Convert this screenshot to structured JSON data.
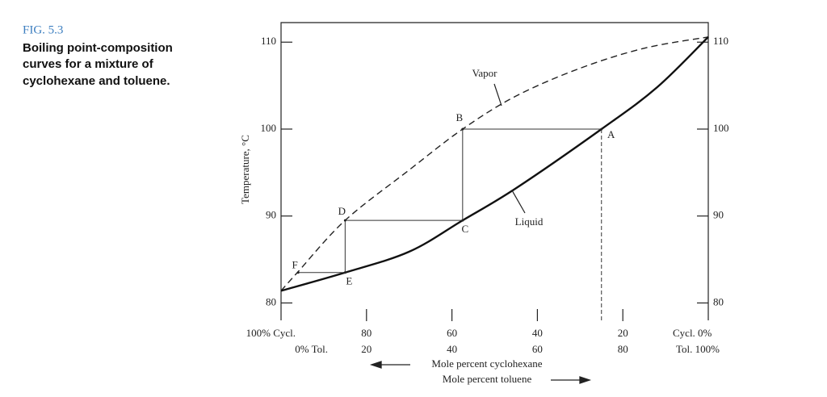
{
  "caption": {
    "figure": "FIG. 5.3",
    "lines": [
      "Boiling point-composition",
      "curves for a mixture of",
      "cyclohexane and toluene."
    ]
  },
  "chart_data": {
    "type": "line",
    "y_label": "Temperature, °C",
    "x_label": "Mole percent cyclohexane",
    "x2_label": "Mole percent toluene",
    "xlim": [
      100,
      0
    ],
    "xticks": [
      {
        "value": 100,
        "label": "100% Cycl."
      },
      80,
      60,
      40,
      20,
      {
        "value": 0,
        "label": "Cycl.  0%"
      }
    ],
    "x2lim": [
      0,
      100
    ],
    "x2ticks": [
      {
        "value": 0,
        "label": "0% Tol."
      },
      20,
      40,
      60,
      80,
      {
        "value": 100,
        "label": "Tol. 100%"
      }
    ],
    "ylim": [
      78,
      112.25
    ],
    "yticks": [
      80,
      90,
      100,
      110
    ],
    "y2lim": [
      78,
      112.25
    ],
    "y2ticks": [
      80,
      90,
      100,
      110
    ],
    "series": [
      {
        "name": "Vapor",
        "style": "dashed",
        "color": "#222",
        "x": [
          100,
          96,
          85,
          70,
          57.5,
          45,
          30,
          15,
          0
        ],
        "values": [
          81.4,
          83.6,
          89.5,
          95.3,
          100,
          103.8,
          107,
          109.3,
          110.6
        ]
      },
      {
        "name": "Liquid",
        "style": "solid",
        "color": "#111",
        "x": [
          100,
          85,
          70,
          57.5,
          45,
          25,
          12,
          0
        ],
        "values": [
          81.4,
          83.5,
          85.9,
          89.5,
          93.2,
          100,
          104.8,
          110.6
        ]
      }
    ],
    "points": [
      {
        "label": "A",
        "x": 25,
        "y": 100
      },
      {
        "label": "B",
        "x": 57.5,
        "y": 100
      },
      {
        "label": "C",
        "x": 57.5,
        "y": 89.5
      },
      {
        "label": "D",
        "x": 85,
        "y": 89.5
      },
      {
        "label": "E",
        "x": 85,
        "y": 83.5
      },
      {
        "label": "F",
        "x": 96,
        "y": 83.5
      }
    ]
  }
}
